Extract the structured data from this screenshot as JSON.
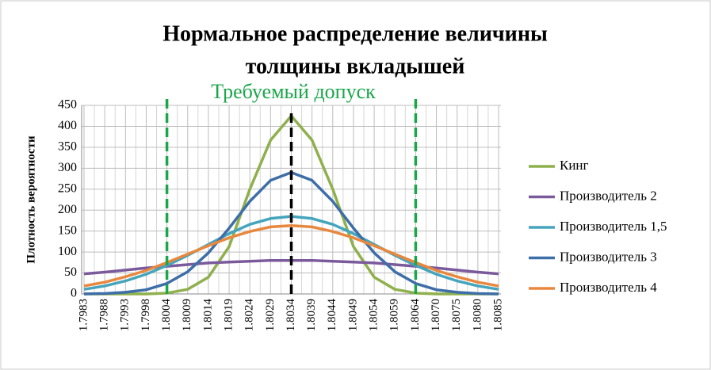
{
  "chart_data": {
    "type": "line",
    "title": "Нормальное распределение величины",
    "subtitle": "толщины вкладышей",
    "y_label": "Плотность вероятности",
    "annotation": "Требуемый допуск",
    "categories": [
      "1.7983",
      "1.7988",
      "1.7993",
      "1.7998",
      "1.8004",
      "1.8009",
      "1.8014",
      "1.8019",
      "1.8024",
      "1.8029",
      "1.8034",
      "1.8039",
      "1.8044",
      "1.8049",
      "1.8054",
      "1.8059",
      "1.8064",
      "1.8070",
      "1.8075",
      "1.8080",
      "1.8085"
    ],
    "series": [
      {
        "name": "Кинг",
        "color": "#8fb04d",
        "values": [
          0,
          0,
          0,
          0,
          2,
          11,
          40,
          113,
          250,
          367,
          425,
          367,
          250,
          113,
          40,
          11,
          2,
          0,
          0,
          0,
          0
        ]
      },
      {
        "name": "Производитель 2",
        "color": "#7b5a9c",
        "values": [
          48,
          52,
          57,
          62,
          66,
          70,
          74,
          76,
          78,
          80,
          80,
          80,
          78,
          76,
          74,
          70,
          66,
          62,
          57,
          52,
          48
        ]
      },
      {
        "name": "Производитель 1,5",
        "color": "#45a5bd",
        "values": [
          11,
          19,
          31,
          47,
          68,
          92,
          118,
          144,
          166,
          180,
          185,
          180,
          166,
          144,
          118,
          92,
          68,
          47,
          31,
          19,
          11
        ]
      },
      {
        "name": "Производитель 3",
        "color": "#3e6ea8",
        "values": [
          0,
          1,
          4,
          10,
          25,
          53,
          98,
          157,
          221,
          271,
          290,
          271,
          221,
          157,
          98,
          53,
          25,
          10,
          4,
          1,
          0
        ]
      },
      {
        "name": "Производитель 4",
        "color": "#e8883e",
        "values": [
          19,
          28,
          41,
          56,
          75,
          95,
          115,
          134,
          149,
          160,
          163,
          160,
          149,
          134,
          115,
          95,
          75,
          56,
          41,
          28,
          19
        ]
      }
    ],
    "reference_lines": [
      {
        "x": "1.8004",
        "color": "#1aa64a"
      },
      {
        "x": "1.8034",
        "color": "#000000"
      },
      {
        "x": "1.8064",
        "color": "#1aa64a"
      }
    ],
    "ylim": [
      0,
      450
    ],
    "yticks": [
      0,
      50,
      100,
      150,
      200,
      250,
      300,
      350,
      400,
      450
    ],
    "grid": true,
    "legend": "right"
  }
}
